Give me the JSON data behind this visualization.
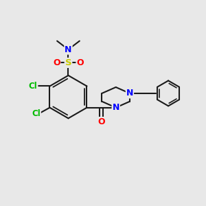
{
  "bg": "#e8e8e8",
  "bond_color": "#1a1a1a",
  "N_color": "#0000ff",
  "S_color": "#cccc00",
  "O_color": "#ff0000",
  "Cl_color": "#00bb00",
  "figsize": [
    3.0,
    3.0
  ],
  "dpi": 100,
  "xlim": [
    0,
    10
  ],
  "ylim": [
    0,
    10
  ]
}
